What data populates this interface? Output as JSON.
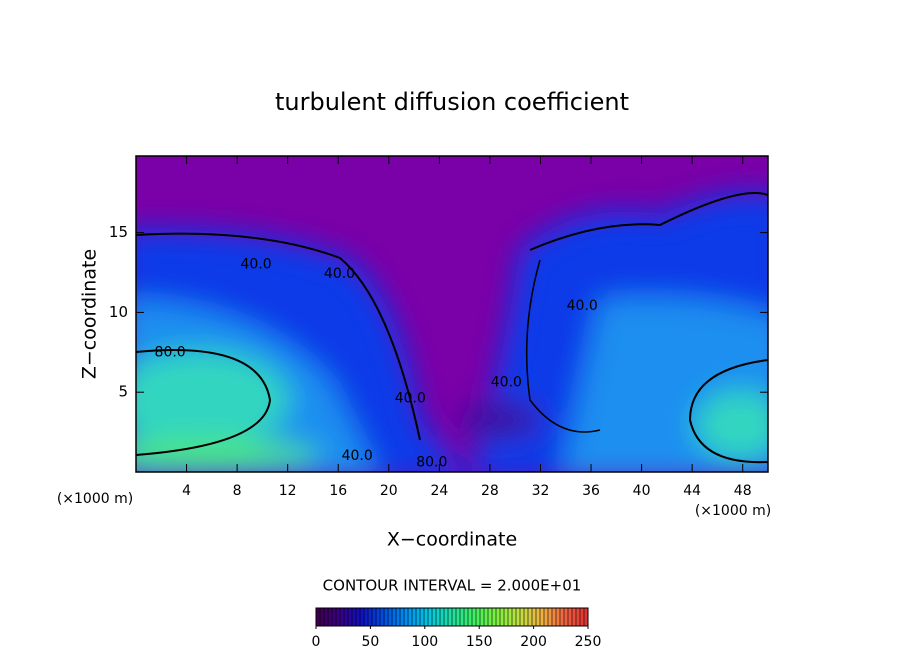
{
  "chart_data": {
    "type": "contour",
    "title": "turbulent diffusion coefficient",
    "x_label": "X−coordinate",
    "y_label": "Z−coordinate",
    "x_unit": "(×1000 m)",
    "xlim": [
      0,
      50
    ],
    "ylim": [
      0,
      19.8
    ],
    "xticks": [
      4,
      8,
      12,
      16,
      20,
      24,
      28,
      32,
      36,
      40,
      44,
      48
    ],
    "yticks": [
      5,
      10,
      15
    ],
    "contour_labels": [
      {
        "text": "40.0",
        "x": 9.5,
        "y": 13.0
      },
      {
        "text": "40.0",
        "x": 16.1,
        "y": 12.4
      },
      {
        "text": "80.0",
        "x": 2.7,
        "y": 7.5
      },
      {
        "text": "40.0",
        "x": 29.3,
        "y": 5.6
      },
      {
        "text": "40.0",
        "x": 35.3,
        "y": 10.4
      },
      {
        "text": "40.0",
        "x": 21.7,
        "y": 4.6
      },
      {
        "text": "40.0",
        "x": 17.5,
        "y": 1.0
      },
      {
        "text": "80.0",
        "x": 23.4,
        "y": 0.6
      }
    ],
    "colorbar": {
      "label": "CONTOUR INTERVAL = 2.000E+01",
      "lim": [
        0,
        250
      ],
      "ticks": [
        0,
        50,
        100,
        150,
        200,
        250
      ],
      "colors": [
        "#40004a",
        "#3a0080",
        "#1010c0",
        "#0050e0",
        "#0090f0",
        "#00c8e0",
        "#20e0a0",
        "#40f060",
        "#80f040",
        "#c0e040",
        "#f0b040",
        "#f06040",
        "#e03030"
      ]
    }
  }
}
